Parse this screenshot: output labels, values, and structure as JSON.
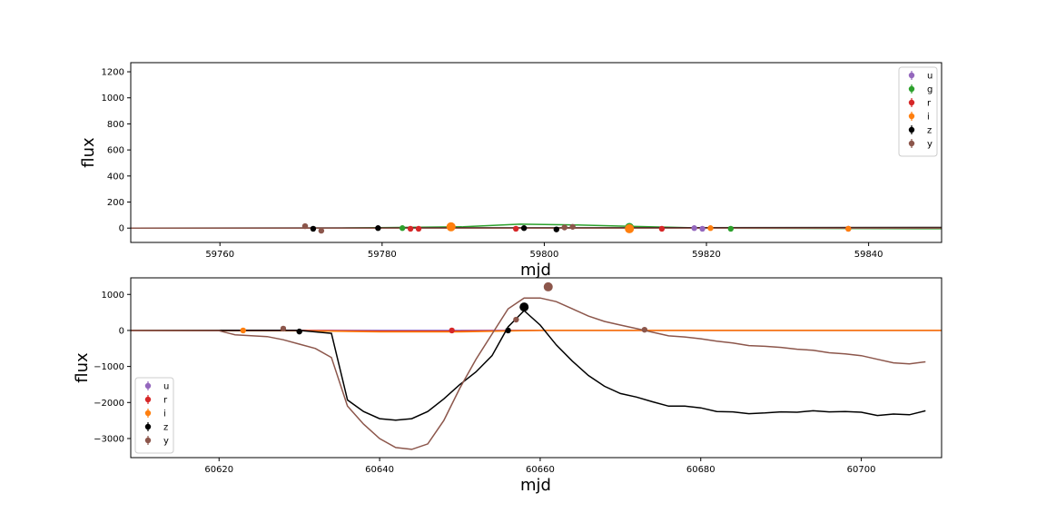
{
  "chart_data": [
    {
      "type": "scatter",
      "xlabel": "mjd",
      "ylabel": "flux",
      "xlim": [
        59749,
        59849
      ],
      "ylim": [
        -110,
        1270
      ],
      "xticks": [
        59760,
        59780,
        59800,
        59820,
        59840
      ],
      "yticks": [
        0,
        200,
        400,
        600,
        800,
        1000,
        1200
      ],
      "legend_position": "top-right",
      "legend": [
        "u",
        "g",
        "r",
        "i",
        "z",
        "y"
      ],
      "colors": {
        "u": "#9467bd",
        "g": "#2ca02c",
        "r": "#d62728",
        "i": "#ff7f0e",
        "z": "#000000",
        "y": "#8c564b"
      },
      "series": [
        {
          "name": "u",
          "points": [
            [
              59818.5,
              0
            ],
            [
              59819.5,
              -5
            ]
          ],
          "model": [
            [
              59749,
              0
            ],
            [
              59849,
              0
            ]
          ]
        },
        {
          "name": "g",
          "points": [
            [
              59782.5,
              0
            ],
            [
              59810.5,
              5
            ],
            [
              59823,
              -5
            ]
          ],
          "model": [
            [
              59749,
              0
            ],
            [
              59775,
              0
            ],
            [
              59790,
              10
            ],
            [
              59797,
              30
            ],
            [
              59803,
              25
            ],
            [
              59810,
              15
            ],
            [
              59820,
              0
            ],
            [
              59849,
              -5
            ]
          ]
        },
        {
          "name": "r",
          "points": [
            [
              59783.5,
              -5
            ],
            [
              59784.5,
              -5
            ],
            [
              59796.5,
              -5
            ],
            [
              59814.5,
              -5
            ],
            [
              59837.5,
              -5
            ]
          ],
          "model": [
            [
              59749,
              0
            ],
            [
              59849,
              0
            ]
          ]
        },
        {
          "name": "i",
          "points": [
            [
              59788.5,
              10
            ],
            [
              59810.5,
              -5
            ],
            [
              59820.5,
              0
            ],
            [
              59837.5,
              -5
            ]
          ],
          "model": [
            [
              59749,
              0
            ],
            [
              59849,
              0
            ]
          ]
        },
        {
          "name": "z",
          "points": [
            [
              59771.5,
              -5
            ],
            [
              59779.5,
              0
            ],
            [
              59797.5,
              0
            ],
            [
              59801.5,
              -10
            ]
          ],
          "model": [
            [
              59749,
              0
            ],
            [
              59849,
              5
            ]
          ]
        },
        {
          "name": "y",
          "points": [
            [
              59770.5,
              15
            ],
            [
              59772.5,
              -20
            ],
            [
              59802.5,
              5
            ],
            [
              59803.5,
              10
            ]
          ],
          "model": [
            [
              59749,
              0
            ],
            [
              59849,
              0
            ]
          ]
        }
      ]
    },
    {
      "type": "scatter",
      "xlabel": "mjd",
      "ylabel": "flux",
      "xlim": [
        60609,
        60710
      ],
      "ylim": [
        -3530,
        1460
      ],
      "xticks": [
        60620,
        60640,
        60660,
        60680,
        60700
      ],
      "yticks": [
        -3000,
        -2000,
        -1000,
        0,
        1000
      ],
      "legend_position": "bottom-left",
      "legend": [
        "u",
        "r",
        "i",
        "z",
        "y"
      ],
      "colors": {
        "u": "#9467bd",
        "r": "#d62728",
        "i": "#ff7f0e",
        "z": "#000000",
        "y": "#8c564b"
      },
      "series": [
        {
          "name": "u",
          "points": [],
          "model": [
            [
              60609,
              0
            ],
            [
              60710,
              0
            ]
          ]
        },
        {
          "name": "r",
          "points": [
            [
              60649,
              0
            ]
          ],
          "model": [
            [
              60609,
              0
            ],
            [
              60630,
              0
            ],
            [
              60640,
              -20
            ],
            [
              60650,
              -20
            ],
            [
              60660,
              0
            ],
            [
              60710,
              0
            ]
          ]
        },
        {
          "name": "i",
          "points": [
            [
              60623,
              0
            ]
          ],
          "model": [
            [
              60609,
              0
            ],
            [
              60630,
              -10
            ],
            [
              60640,
              -40
            ],
            [
              60650,
              -40
            ],
            [
              60660,
              0
            ],
            [
              60710,
              0
            ]
          ]
        },
        {
          "name": "z",
          "points": [
            [
              60630,
              -30
            ],
            [
              60656,
              0
            ],
            [
              60658,
              650
            ]
          ],
          "model": [
            [
              60609,
              0
            ],
            [
              60630,
              0
            ],
            [
              60634,
              -80
            ],
            [
              60636,
              -1930
            ],
            [
              60638,
              -2250
            ],
            [
              60640,
              -2450
            ],
            [
              60642,
              -2490
            ],
            [
              60644,
              -2450
            ],
            [
              60646,
              -2250
            ],
            [
              60648,
              -1900
            ],
            [
              60650,
              -1500
            ],
            [
              60652,
              -1150
            ],
            [
              60654,
              -700
            ],
            [
              60656,
              100
            ],
            [
              60658,
              550
            ],
            [
              60660,
              150
            ],
            [
              60662,
              -400
            ],
            [
              60664,
              -850
            ],
            [
              60666,
              -1250
            ],
            [
              60668,
              -1550
            ],
            [
              60670,
              -1750
            ],
            [
              60672,
              -1850
            ],
            [
              60674,
              -1980
            ],
            [
              60676,
              -2100
            ],
            [
              60678,
              -2100
            ],
            [
              60680,
              -2150
            ],
            [
              60682,
              -2250
            ],
            [
              60684,
              -2260
            ],
            [
              60686,
              -2310
            ],
            [
              60688,
              -2290
            ],
            [
              60690,
              -2260
            ],
            [
              60692,
              -2270
            ],
            [
              60694,
              -2230
            ],
            [
              60696,
              -2260
            ],
            [
              60698,
              -2250
            ],
            [
              60700,
              -2270
            ],
            [
              60702,
              -2360
            ],
            [
              60704,
              -2320
            ],
            [
              60706,
              -2340
            ],
            [
              60708,
              -2230
            ]
          ]
        },
        {
          "name": "y",
          "points": [
            [
              60628,
              50
            ],
            [
              60657,
              300
            ],
            [
              60661,
              1210
            ],
            [
              60673,
              20
            ]
          ],
          "model": [
            [
              60609,
              0
            ],
            [
              60620,
              -10
            ],
            [
              60622,
              -120
            ],
            [
              60626,
              -170
            ],
            [
              60628,
              -260
            ],
            [
              60630,
              -380
            ],
            [
              60632,
              -500
            ],
            [
              60634,
              -750
            ],
            [
              60636,
              -2100
            ],
            [
              60638,
              -2600
            ],
            [
              60640,
              -3000
            ],
            [
              60642,
              -3250
            ],
            [
              60644,
              -3300
            ],
            [
              60646,
              -3150
            ],
            [
              60648,
              -2500
            ],
            [
              60650,
              -1600
            ],
            [
              60652,
              -800
            ],
            [
              60654,
              -100
            ],
            [
              60656,
              600
            ],
            [
              60658,
              900
            ],
            [
              60660,
              900
            ],
            [
              60662,
              800
            ],
            [
              60664,
              600
            ],
            [
              60666,
              400
            ],
            [
              60668,
              250
            ],
            [
              60670,
              150
            ],
            [
              60672,
              50
            ],
            [
              60674,
              -50
            ],
            [
              60676,
              -150
            ],
            [
              60678,
              -180
            ],
            [
              60680,
              -230
            ],
            [
              60682,
              -300
            ],
            [
              60684,
              -350
            ],
            [
              60686,
              -420
            ],
            [
              60688,
              -440
            ],
            [
              60690,
              -470
            ],
            [
              60692,
              -520
            ],
            [
              60694,
              -550
            ],
            [
              60696,
              -620
            ],
            [
              60698,
              -650
            ],
            [
              60700,
              -700
            ],
            [
              60702,
              -800
            ],
            [
              60704,
              -900
            ],
            [
              60706,
              -930
            ],
            [
              60708,
              -870
            ]
          ]
        }
      ]
    }
  ]
}
